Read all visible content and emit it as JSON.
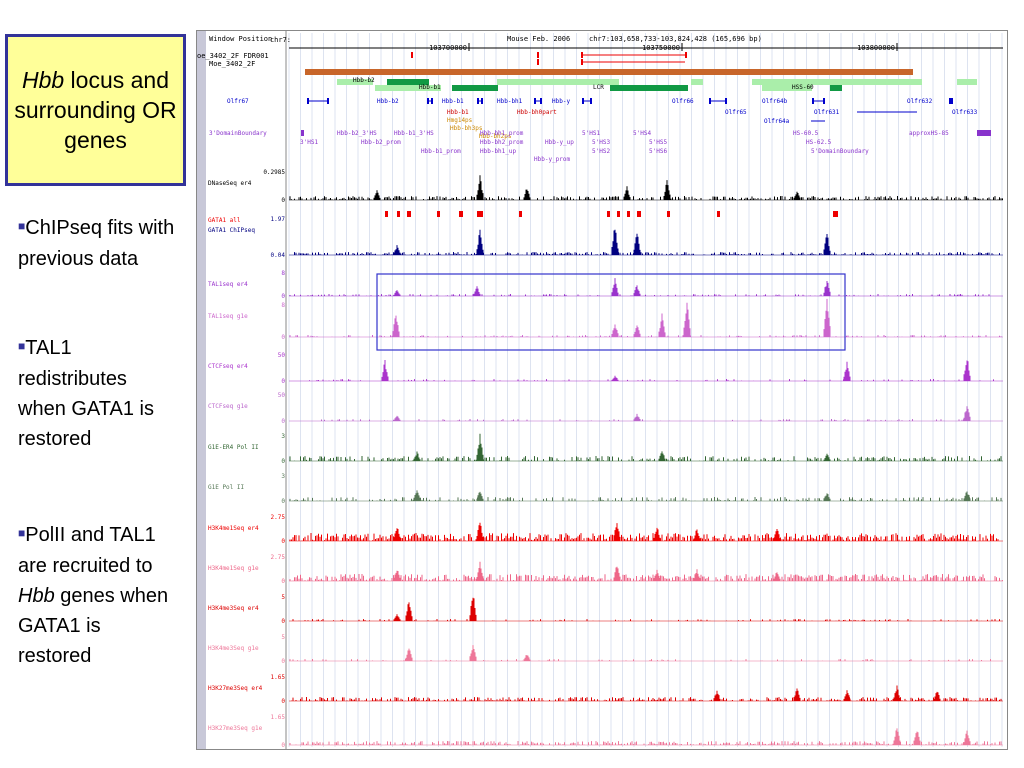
{
  "slide": {
    "title_italic": "Hbb",
    "title_rest": " locus and surrounding OR genes",
    "bullets": [
      {
        "pre": "ChIPseq fits with previous data",
        "ital": "",
        "post": ""
      },
      {
        "pre": "TAL1 redistributes when GATA1 is restored",
        "ital": "",
        "post": ""
      },
      {
        "pre": "PolII and TAL1 are recruited to ",
        "ital": "Hbb",
        "post": " genes when GATA1 is restored"
      }
    ]
  },
  "browser": {
    "header_labels": [
      "Window Position",
      "chr7:",
      "oe_3402_2F FDR001",
      "Moe_3402_2F"
    ],
    "assembly": "Mouse Feb. 2006",
    "position": "chr7:103,658,733-103,824,428 (165,696 bp)",
    "ticks": [
      "103700000",
      "103750000",
      "103800000"
    ],
    "gene_labels": [
      "Hbb-b2",
      "Hbb-b1",
      "LCR",
      "HSS-60",
      "Olfr67",
      "Hbb-b2",
      "Hbb-b1",
      "Hbb-bh1",
      "Hbb-y",
      "Olfr66",
      "Olfr64b",
      "Olfr632",
      "Olfr65",
      "Olfr631",
      "Olfr633",
      "Olfr64a",
      "Hbb-b1",
      "Hbb-bh0part",
      "Hmg14ps",
      "Hbb-bh3ps",
      "Hbb-bh2ps"
    ],
    "element_labels": [
      "3'DomainBoundary",
      "Hbb-b2_3'HS",
      "Hbb-b1_3'HS",
      "Hbb-bh1_prom",
      "5'HS1",
      "5'HS4",
      "HS-60.5",
      "approxHS-85",
      "3'HS1",
      "Hbb-b2_prom",
      "Hbb-bh2_prom",
      "Hbb-y_up",
      "5'HS3",
      "5'HS5",
      "HS-62.5",
      "Hbb-b1_prom",
      "Hbb-bh1_up",
      "5'HS2",
      "5'HS6",
      "5'DomainBoundary",
      "Hbb-y_prom"
    ],
    "tracks": [
      {
        "name": "DNaseSeq er4",
        "top_scale": "0.2985",
        "bottom_scale": "0",
        "color": "#000000"
      },
      {
        "name": "GATA1 all",
        "top_scale": "",
        "bottom_scale": "",
        "color": "#ee0000"
      },
      {
        "name": "GATA1 ChIPseq",
        "top_scale": "1.97",
        "bottom_scale": "0.04",
        "color": "#000080"
      },
      {
        "name": "TAL1seq er4",
        "top_scale": "8",
        "bottom_scale": "0",
        "color": "#9933cc"
      },
      {
        "name": "TAL1seq g1e",
        "top_scale": "8",
        "bottom_scale": "0",
        "color": "#cc66cc"
      },
      {
        "name": "CTCFseq er4",
        "top_scale": "50",
        "bottom_scale": "0",
        "color": "#aa33cc"
      },
      {
        "name": "CTCFseq g1e",
        "top_scale": "50",
        "bottom_scale": "0",
        "color": "#bb66cc"
      },
      {
        "name": "G1E-ER4 Pol II",
        "top_scale": "3",
        "bottom_scale": "0",
        "color": "#336633"
      },
      {
        "name": "G1E Pol II",
        "top_scale": "3",
        "bottom_scale": "0",
        "color": "#557755"
      },
      {
        "name": "H3K4me1Seq er4",
        "top_scale": "2.75",
        "bottom_scale": "0",
        "color": "#ee0000"
      },
      {
        "name": "H3K4me1Seq g1e",
        "top_scale": "2.75",
        "bottom_scale": "0",
        "color": "#ee6688"
      },
      {
        "name": "H3K4me3Seq er4",
        "top_scale": "5",
        "bottom_scale": "0",
        "color": "#dd0000"
      },
      {
        "name": "H3K4me3Seq g1e",
        "top_scale": "5",
        "bottom_scale": "0",
        "color": "#ee7799"
      },
      {
        "name": "H3K27me3Seq er4",
        "top_scale": "1.65",
        "bottom_scale": "0",
        "color": "#dd0000"
      },
      {
        "name": "H3K27me3Seq g1e",
        "top_scale": "1.65",
        "bottom_scale": "0",
        "color": "#ee7799"
      }
    ]
  }
}
